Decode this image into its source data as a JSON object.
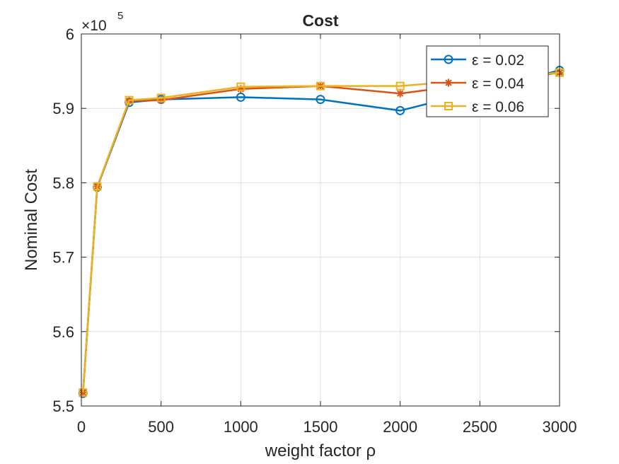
{
  "chart_data": {
    "type": "line",
    "title": "Cost",
    "xlabel": "weight factor ρ",
    "ylabel": "Nominal Cost",
    "y_exponent_label": "×10",
    "y_exponent_value": "5",
    "xlim": [
      0,
      3000
    ],
    "ylim": [
      550000,
      600000
    ],
    "x_ticks": [
      0,
      500,
      1000,
      1500,
      2000,
      2500,
      3000
    ],
    "y_ticks": [
      550000,
      560000,
      570000,
      580000,
      590000,
      600000
    ],
    "x_tick_labels": [
      "0",
      "500",
      "1000",
      "1500",
      "2000",
      "2500",
      "3000"
    ],
    "y_tick_labels": [
      "5.5",
      "5.6",
      "5.7",
      "5.8",
      "5.9",
      "6"
    ],
    "grid": true,
    "legend_position": "top-right",
    "x": [
      10,
      100,
      300,
      500,
      1000,
      1500,
      2000,
      3000
    ],
    "series": [
      {
        "name": "ε  = 0.02",
        "color": "#0072BD",
        "marker": "circle",
        "values": [
          551700,
          579400,
          590800,
          591200,
          591500,
          591200,
          589700,
          595100
        ]
      },
      {
        "name": "ε  = 0.04",
        "color": "#D95319",
        "marker": "asterisk",
        "values": [
          551800,
          579500,
          591000,
          591100,
          592600,
          593000,
          592000,
          594800
        ]
      },
      {
        "name": "ε  = 0.06",
        "color": "#EDB120",
        "marker": "square",
        "values": [
          551800,
          579500,
          591100,
          591400,
          592900,
          593000,
          593000,
          594800
        ]
      }
    ]
  }
}
